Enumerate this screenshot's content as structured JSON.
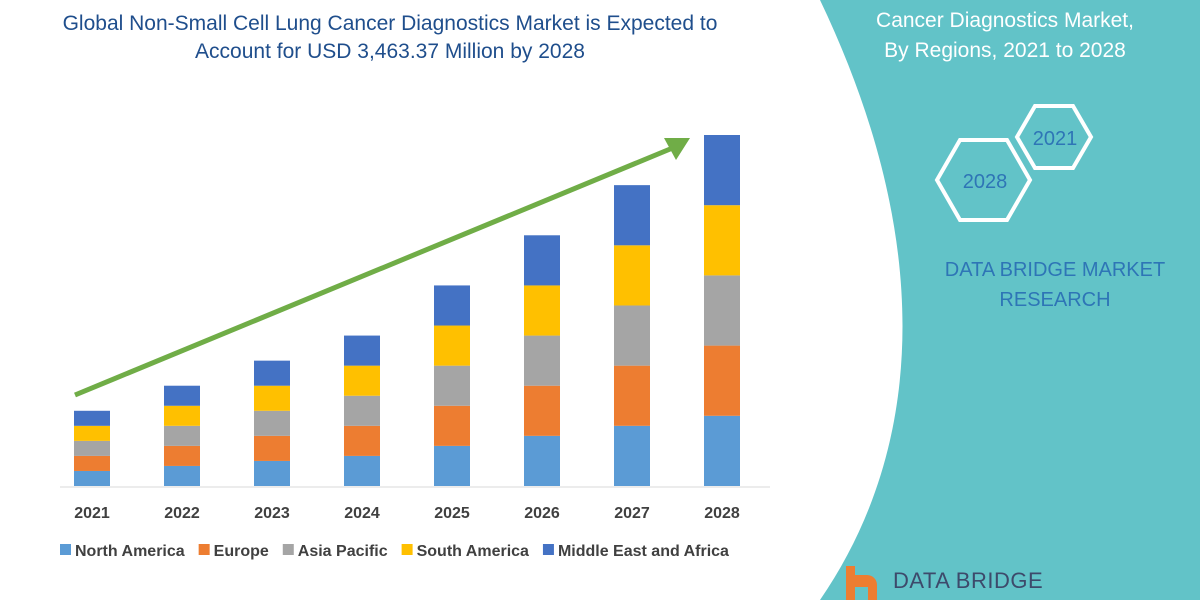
{
  "chart_data": {
    "type": "bar",
    "stacked": true,
    "title": "Global Non-Small Cell Lung Cancer Diagnostics Market is Expected to Account for USD 3,463.37 Million by 2028",
    "xlabel": "",
    "ylabel": "",
    "categories": [
      "2021",
      "2022",
      "2023",
      "2024",
      "2025",
      "2026",
      "2027",
      "2028"
    ],
    "series": [
      {
        "name": "North America",
        "color": "#5b9bd5",
        "values": [
          15,
          20,
          25,
          30,
          40,
          50,
          60,
          70
        ]
      },
      {
        "name": "Europe",
        "color": "#ed7d31",
        "values": [
          15,
          20,
          25,
          30,
          40,
          50,
          60,
          70
        ]
      },
      {
        "name": "Asia Pacific",
        "color": "#a5a5a5",
        "values": [
          15,
          20,
          25,
          30,
          40,
          50,
          60,
          70
        ]
      },
      {
        "name": "South America",
        "color": "#ffc000",
        "values": [
          15,
          20,
          25,
          30,
          40,
          50,
          60,
          70
        ]
      },
      {
        "name": "Middle East and Africa",
        "color": "#4472c4",
        "values": [
          15,
          20,
          25,
          30,
          40,
          50,
          60,
          70
        ]
      }
    ],
    "ylim": [
      0,
      350
    ],
    "grid": false,
    "legend": "bottom",
    "note": "relative values; no y-axis shown"
  },
  "side_panel": {
    "title_line1": "Cancer Diagnostics Market,",
    "title_line2": "By Regions, 2021 to 2028",
    "hex_start": "2021",
    "hex_end": "2028",
    "brand_line1": "DATA BRIDGE MARKET",
    "brand_line2": "RESEARCH",
    "logo_text": "DATA BRIDGE"
  },
  "colors": {
    "panel": "#62c3c8",
    "arrow": "#70ad47",
    "title": "#1f4e8c"
  }
}
